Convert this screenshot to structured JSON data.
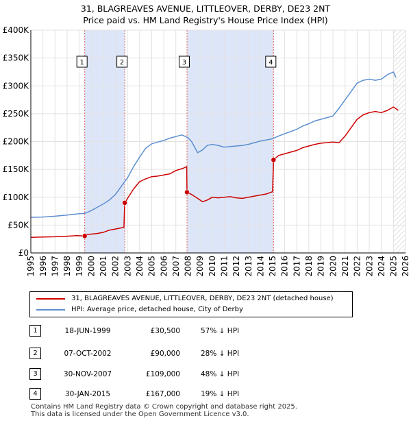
{
  "title_line1": "31, BLAGREAVES AVENUE, LITTLEOVER, DERBY, DE23 2NT",
  "title_line2": "Price paid vs. HM Land Registry's House Price Index (HPI)",
  "legend": {
    "property": "31, BLAGREAVES AVENUE, LITTLEOVER, DERBY, DE23 2NT (detached house)",
    "hpi": "HPI: Average price, detached house, City of Derby"
  },
  "sales": [
    {
      "num": "1",
      "date": "18-JUN-1999",
      "price": "£30,500",
      "hpi": "57% ↓ HPI"
    },
    {
      "num": "2",
      "date": "07-OCT-2002",
      "price": "£90,000",
      "hpi": "28% ↓ HPI"
    },
    {
      "num": "3",
      "date": "30-NOV-2007",
      "price": "£109,000",
      "hpi": "48% ↓ HPI"
    },
    {
      "num": "4",
      "date": "30-JAN-2015",
      "price": "£167,000",
      "hpi": "19% ↓ HPI"
    }
  ],
  "footer_line1": "Contains HM Land Registry data © Crown copyright and database right 2025.",
  "footer_line2": "This data is licensed under the Open Government Licence v3.0.",
  "chart_data": {
    "type": "line",
    "title": "31, BLAGREAVES AVENUE, LITTLEOVER, DERBY, DE23 2NT — Price paid vs. HM Land Registry's House Price Index (HPI)",
    "xlabel": "",
    "ylabel": "",
    "xlim": [
      1995,
      2026
    ],
    "ylim": [
      0,
      400000
    ],
    "x_ticks": [
      1995,
      1996,
      1997,
      1998,
      1999,
      2000,
      2001,
      2002,
      2003,
      2004,
      2005,
      2006,
      2007,
      2008,
      2009,
      2010,
      2011,
      2012,
      2013,
      2014,
      2015,
      2016,
      2017,
      2018,
      2019,
      2020,
      2021,
      2022,
      2023,
      2024,
      2025,
      2026
    ],
    "y_ticks": [
      {
        "value": 0,
        "label": "£0"
      },
      {
        "value": 50000,
        "label": "£50K"
      },
      {
        "value": 100000,
        "label": "£100K"
      },
      {
        "value": 150000,
        "label": "£150K"
      },
      {
        "value": 200000,
        "label": "£200K"
      },
      {
        "value": 250000,
        "label": "£250K"
      },
      {
        "value": 300000,
        "label": "£300K"
      },
      {
        "value": 350000,
        "label": "£350K"
      },
      {
        "value": 400000,
        "label": "£400K"
      }
    ],
    "grid": true,
    "shaded_periods": [
      [
        1999.46,
        2002.77
      ],
      [
        2007.92,
        2015.08
      ]
    ],
    "future_hatch_from": 2025.0,
    "colors": {
      "property": "#cc0000",
      "hpi": "#5b8fd0",
      "shade": "#dde6f8",
      "vline": "#e06060"
    },
    "series": [
      {
        "name": "31, BLAGREAVES AVENUE, LITTLEOVER, DERBY, DE23 2NT (detached house)",
        "color": "#cc0000",
        "x": [
          1995.0,
          1996.0,
          1997.0,
          1998.0,
          1998.8,
          1999.46,
          1999.6,
          2000.5,
          2001.0,
          2001.5,
          2002.0,
          2002.7,
          2002.77,
          2003.0,
          2003.5,
          2004.0,
          2004.5,
          2005.0,
          2005.5,
          2006.0,
          2006.5,
          2007.0,
          2007.6,
          2007.9,
          2007.92,
          2008.3,
          2008.8,
          2009.2,
          2009.6,
          2010.0,
          2010.5,
          2011.0,
          2011.5,
          2012.0,
          2012.5,
          2013.0,
          2013.5,
          2014.0,
          2014.5,
          2015.0,
          2015.08,
          2015.5,
          2016.0,
          2016.5,
          2017.0,
          2017.5,
          2018.0,
          2018.5,
          2019.0,
          2019.5,
          2020.0,
          2020.5,
          2021.0,
          2021.5,
          2022.0,
          2022.5,
          2023.0,
          2023.5,
          2024.0,
          2024.5,
          2025.0,
          2025.4
        ],
        "values": [
          28000,
          28500,
          29000,
          30000,
          31000,
          30500,
          33000,
          35000,
          37000,
          41000,
          43000,
          46000,
          90000,
          98000,
          115000,
          128000,
          133000,
          137000,
          138000,
          140000,
          142000,
          148000,
          152000,
          155000,
          109000,
          105000,
          98000,
          92000,
          95000,
          100000,
          99000,
          100000,
          101000,
          99000,
          98000,
          100000,
          102000,
          104000,
          106000,
          110000,
          167000,
          175000,
          178000,
          181000,
          184000,
          189000,
          192000,
          195000,
          197000,
          198000,
          199000,
          198000,
          210000,
          225000,
          240000,
          248000,
          252000,
          254000,
          252000,
          256000,
          262000,
          256000
        ]
      },
      {
        "name": "HPI: Average price, detached house, City of Derby",
        "color": "#5b8fd0",
        "x": [
          1995.0,
          1996.0,
          1997.0,
          1998.0,
          1999.0,
          1999.46,
          2000.0,
          2000.5,
          2001.0,
          2001.5,
          2002.0,
          2002.5,
          2003.0,
          2003.5,
          2004.0,
          2004.5,
          2005.0,
          2005.5,
          2006.0,
          2006.5,
          2007.0,
          2007.5,
          2008.0,
          2008.3,
          2008.8,
          2009.2,
          2009.6,
          2010.0,
          2010.5,
          2011.0,
          2011.5,
          2012.0,
          2012.5,
          2013.0,
          2013.5,
          2014.0,
          2014.5,
          2015.0,
          2015.5,
          2016.0,
          2016.5,
          2017.0,
          2017.5,
          2018.0,
          2018.5,
          2019.0,
          2019.5,
          2020.0,
          2020.5,
          2021.0,
          2021.5,
          2022.0,
          2022.5,
          2023.0,
          2023.5,
          2024.0,
          2024.5,
          2025.0,
          2025.2
        ],
        "values": [
          64000,
          64500,
          66000,
          68000,
          70500,
          71000,
          76000,
          82000,
          88000,
          95000,
          105000,
          120000,
          135000,
          155000,
          172000,
          188000,
          196000,
          199000,
          202000,
          206000,
          209000,
          212000,
          207000,
          200000,
          180000,
          185000,
          193000,
          195000,
          193000,
          190000,
          191000,
          192000,
          193000,
          195000,
          198000,
          201000,
          203000,
          205000,
          210000,
          214000,
          218000,
          222000,
          228000,
          232000,
          237000,
          240000,
          243000,
          246000,
          260000,
          275000,
          290000,
          305000,
          310000,
          312000,
          310000,
          312000,
          320000,
          325000,
          315000
        ]
      }
    ],
    "sale_markers": [
      {
        "label": "1",
        "x": 1999.46,
        "value": 30500
      },
      {
        "label": "2",
        "x": 2002.77,
        "value": 90000
      },
      {
        "label": "3",
        "x": 2007.92,
        "value": 109000
      },
      {
        "label": "4",
        "x": 2015.08,
        "value": 167000
      }
    ]
  }
}
